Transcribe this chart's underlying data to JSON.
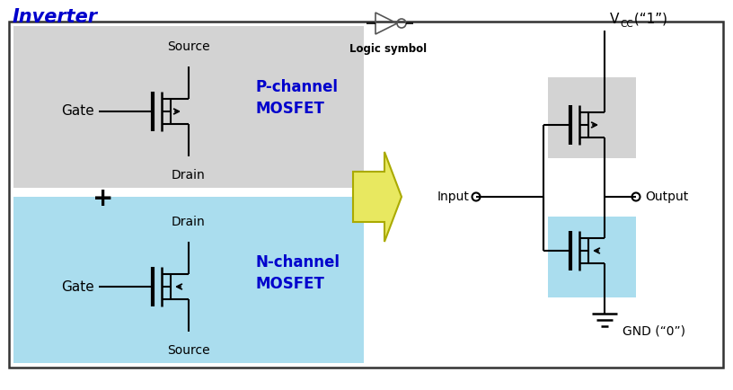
{
  "title": "Inverter",
  "title_color": "#0000CC",
  "title_fontsize": 15,
  "logic_symbol_label": "Logic symbol",
  "bg_color": "#ffffff",
  "border_color": "#333333",
  "p_mosfet_bg": "#d3d3d3",
  "n_mosfet_bg": "#aaddee",
  "p_label": "P-channel\nMOSFET",
  "n_label": "N-channel\nMOSFET",
  "p_label_color": "#0000CC",
  "n_label_color": "#0000CC",
  "gate_label": "Gate",
  "source_label_p": "Source",
  "drain_label_p": "Drain",
  "drain_label_n": "Drain",
  "source_label_n": "Source",
  "input_label": "Input",
  "output_label": "Output",
  "vcc_label": "V",
  "vcc_sub": "CC",
  "vcc_val": " (“1”)",
  "gnd_label": "GND (“0”)",
  "plus_symbol": "+",
  "line_color": "#000000",
  "arrow_facecolor": "#e8e860",
  "arrow_edgecolor": "#aaaa00"
}
